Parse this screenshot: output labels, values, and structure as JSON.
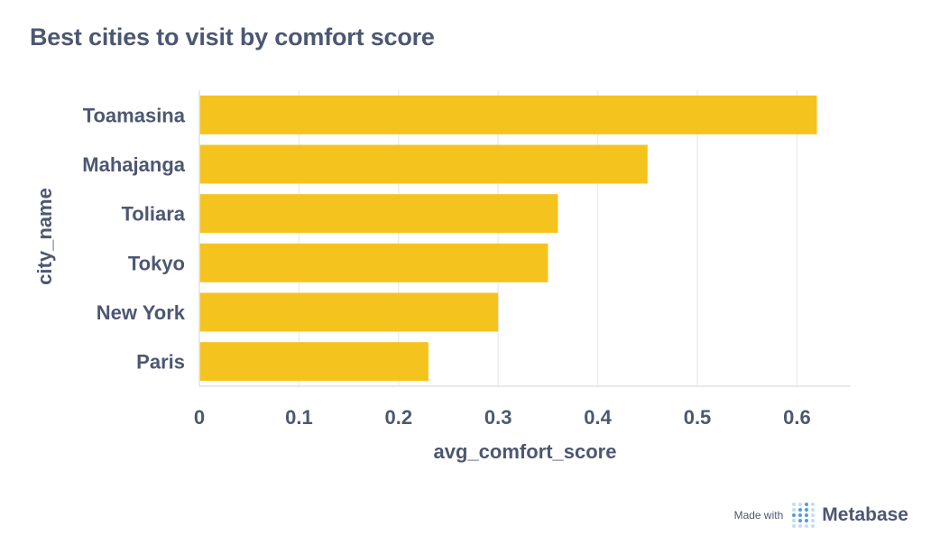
{
  "title": "Best cities to visit by comfort score",
  "footer": {
    "made_with": "Made with",
    "brand": "Metabase",
    "logo_icon": "metabase-logo-icon"
  },
  "colors": {
    "bar": "#F5C31E",
    "text": "#4c5773",
    "grid": "#eceef1",
    "logo_blue": "#509ee3"
  },
  "chart_data": {
    "type": "bar",
    "orientation": "horizontal",
    "categories": [
      "Toamasina",
      "Mahajanga",
      "Toliara",
      "Tokyo",
      "New York",
      "Paris"
    ],
    "series": [
      {
        "values": [
          0.62,
          0.45,
          0.36,
          0.35,
          0.3,
          0.23
        ]
      }
    ],
    "xlabel": "avg_comfort_score",
    "ylabel": "city_name",
    "xlim": [
      0,
      0.65
    ],
    "xticks": [
      0,
      0.1,
      0.2,
      0.3,
      0.4,
      0.5,
      0.6
    ],
    "xtick_labels": [
      "0",
      "0.1",
      "0.2",
      "0.3",
      "0.4",
      "0.5",
      "0.6"
    ],
    "grid": true,
    "legend": false
  }
}
